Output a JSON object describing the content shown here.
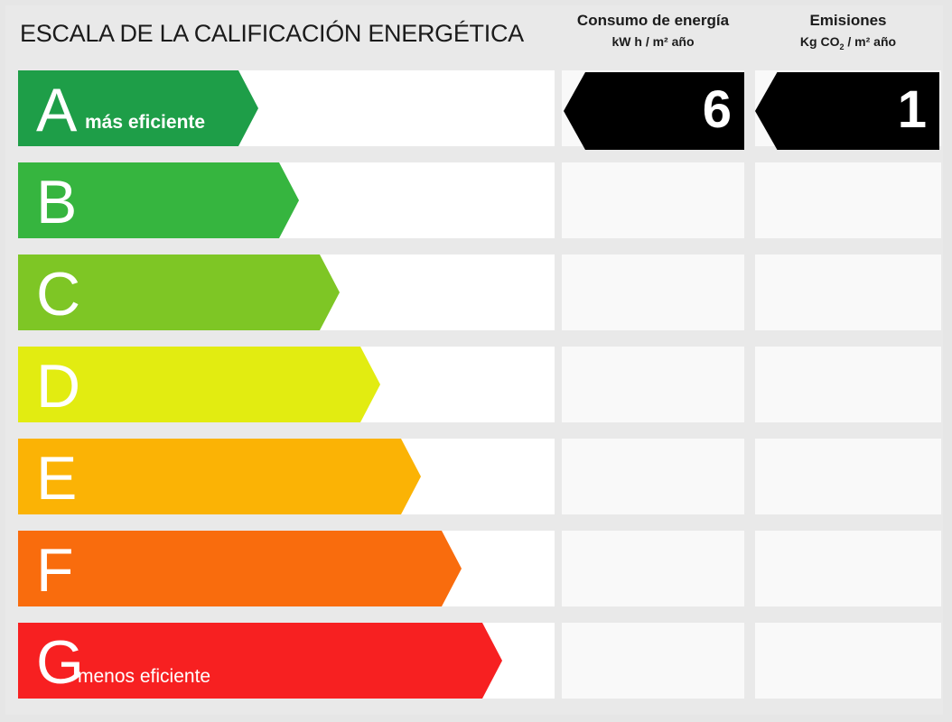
{
  "title": "ESCALA DE LA CALIFICACIÓN ENERGÉTICA",
  "columns": {
    "consumo": {
      "title": "Consumo de energía",
      "unit": "kW h / m² año"
    },
    "emisiones": {
      "title": "Emisiones",
      "unit_pre": "Kg CO",
      "unit_sub": "2",
      "unit_post": " / m² año"
    }
  },
  "classes": [
    {
      "letter": "A",
      "note": "más eficiente",
      "color": "#1e9e48"
    },
    {
      "letter": "B",
      "note": "",
      "color": "#36b53f"
    },
    {
      "letter": "C",
      "note": "",
      "color": "#7ec625"
    },
    {
      "letter": "D",
      "note": "",
      "color": "#e2ec11"
    },
    {
      "letter": "E",
      "note": "",
      "color": "#fbb305"
    },
    {
      "letter": "F",
      "note": "",
      "color": "#f96c0d"
    },
    {
      "letter": "G",
      "note": "menos eficiente",
      "color": "#f72021"
    }
  ],
  "rating": {
    "class": "A",
    "consumo_value": "6",
    "emisiones_value": "1",
    "badge_color": "#000000"
  }
}
